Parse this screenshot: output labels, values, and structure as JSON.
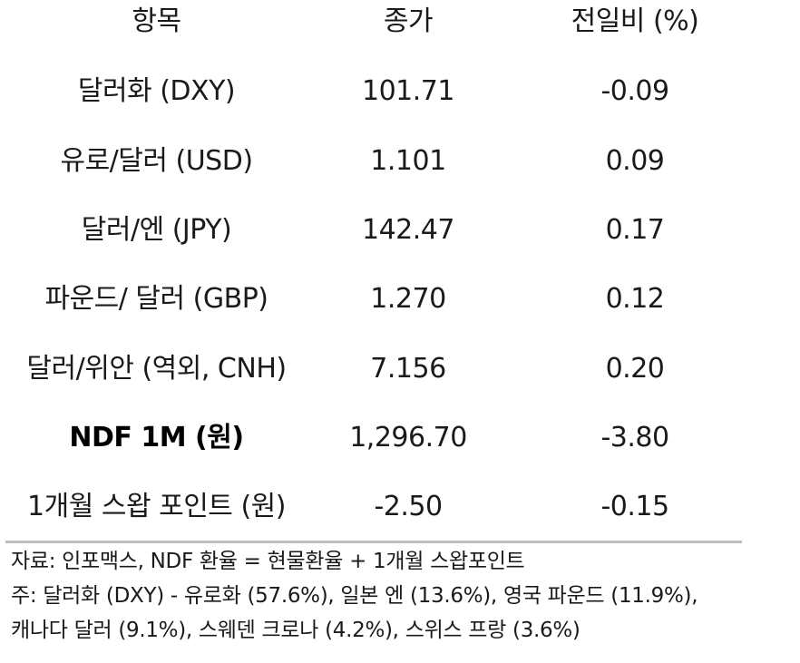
{
  "table": {
    "headers": [
      "항목",
      "종가",
      "전일비 (%)"
    ],
    "rows": [
      {
        "item": "달러화 (DXY)",
        "close": "101.71",
        "change": "-0.09"
      },
      {
        "item": "유로/달러 (USD)",
        "close": "1.101",
        "change": "0.09"
      },
      {
        "item": "달러/엔 (JPY)",
        "close": "142.47",
        "change": "0.17"
      },
      {
        "item": "파운드/ 달러 (GBP)",
        "close": "1.270",
        "change": "0.12"
      },
      {
        "item": "달러/위안 (역외, CNH)",
        "close": "7.156",
        "change": "0.20"
      },
      {
        "item": "NDF 1M (원)",
        "close": "1,296.70",
        "change": "-3.80",
        "bold": true
      },
      {
        "item": "1개월 스왑 포인트 (원)",
        "close": "-2.50",
        "change": "-0.15"
      }
    ]
  },
  "notes": {
    "source": "자료: 인포맥스, NDF 환율 = 현물환율 + 1개월 스왑포인트",
    "note_line1": "주: 달러화 (DXY) - 유로화 (57.6%), 일본 엔 (13.6%), 영국 파운드 (11.9%),",
    "note_line2": "캐나다 달러 (9.1%), 스웨덴 크로나 (4.2%), 스위스 프랑 (3.6%)"
  }
}
